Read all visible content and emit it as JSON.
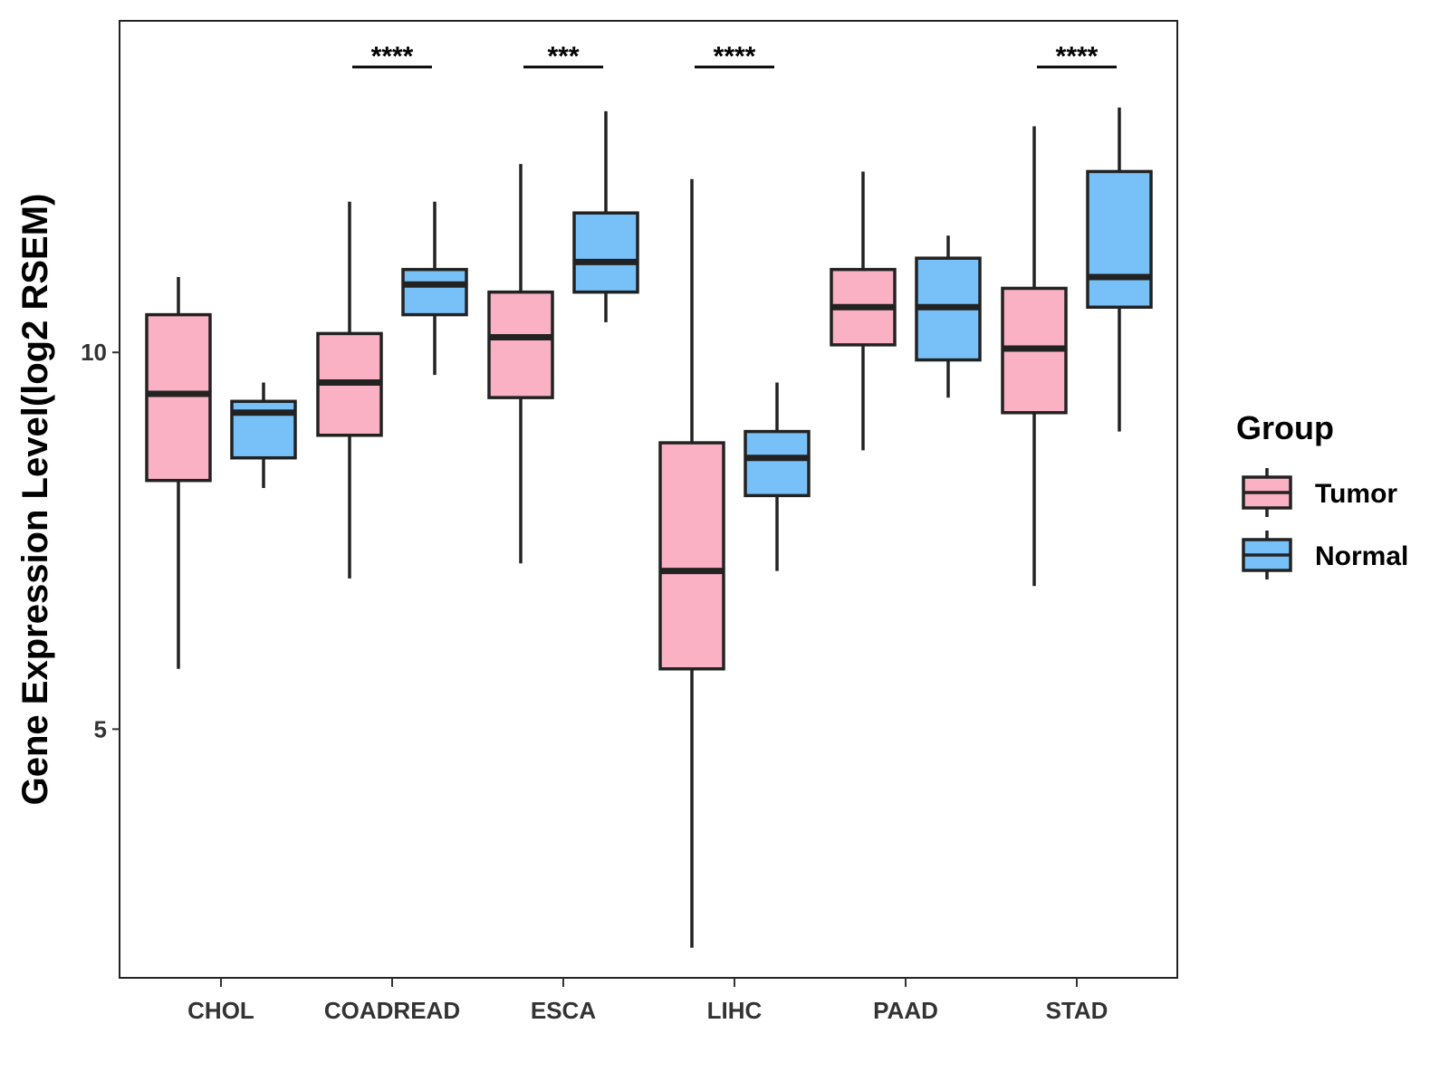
{
  "chart_data": {
    "type": "boxplot",
    "title": "",
    "xlabel": "",
    "ylabel": "Gene Expression Level(log2 RSEM)",
    "ylim": [
      1.7,
      14.4
    ],
    "y_ticks": [
      5,
      10
    ],
    "categories": [
      "CHOL",
      "COADREAD",
      "ESCA",
      "LIHC",
      "PAAD",
      "STAD"
    ],
    "colors": {
      "Tumor": "#fbb1c4",
      "Normal": "#78c1f8",
      "stroke": "#222222"
    },
    "legend": {
      "title": "Group",
      "position": "right",
      "entries": [
        "Tumor",
        "Normal"
      ]
    },
    "series": [
      {
        "name": "Tumor",
        "boxes": [
          {
            "category": "CHOL",
            "min": 5.8,
            "q1": 8.3,
            "median": 9.45,
            "q3": 10.5,
            "max": 11.0
          },
          {
            "category": "COADREAD",
            "min": 7.0,
            "q1": 8.9,
            "median": 9.6,
            "q3": 10.25,
            "max": 12.0
          },
          {
            "category": "ESCA",
            "min": 7.2,
            "q1": 9.4,
            "median": 10.2,
            "q3": 10.8,
            "max": 12.5
          },
          {
            "category": "LIHC",
            "min": 2.1,
            "q1": 5.8,
            "median": 7.1,
            "q3": 8.8,
            "max": 12.3
          },
          {
            "category": "PAAD",
            "min": 8.7,
            "q1": 10.1,
            "median": 10.6,
            "q3": 11.1,
            "max": 12.4
          },
          {
            "category": "STAD",
            "min": 6.9,
            "q1": 9.2,
            "median": 10.05,
            "q3": 10.85,
            "max": 13.0
          }
        ]
      },
      {
        "name": "Normal",
        "boxes": [
          {
            "category": "CHOL",
            "min": 8.2,
            "q1": 8.6,
            "median": 9.2,
            "q3": 9.35,
            "max": 9.6
          },
          {
            "category": "COADREAD",
            "min": 9.7,
            "q1": 10.5,
            "median": 10.9,
            "q3": 11.1,
            "max": 12.0
          },
          {
            "category": "ESCA",
            "min": 10.4,
            "q1": 10.8,
            "median": 11.2,
            "q3": 11.85,
            "max": 13.2
          },
          {
            "category": "LIHC",
            "min": 7.1,
            "q1": 8.1,
            "median": 8.6,
            "q3": 8.95,
            "max": 9.6
          },
          {
            "category": "PAAD",
            "min": 9.4,
            "q1": 9.9,
            "median": 10.6,
            "q3": 11.25,
            "max": 11.55
          },
          {
            "category": "STAD",
            "min": 8.95,
            "q1": 10.6,
            "median": 11.0,
            "q3": 12.4,
            "max": 13.25
          }
        ]
      }
    ],
    "significance": [
      {
        "category": "COADREAD",
        "label": "****"
      },
      {
        "category": "ESCA",
        "label": "***"
      },
      {
        "category": "LIHC",
        "label": "****"
      },
      {
        "category": "STAD",
        "label": "****"
      }
    ]
  }
}
